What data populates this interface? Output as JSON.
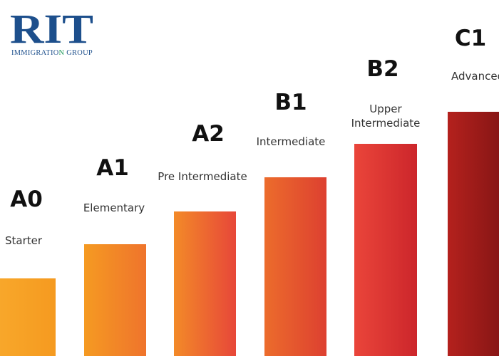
{
  "logo": {
    "mark": "RIT",
    "tagline": "IMMIGRATION GROUP"
  },
  "levels": [
    {
      "code": "A0",
      "name": [
        "Starter"
      ]
    },
    {
      "code": "A1",
      "name": [
        "Elementary"
      ]
    },
    {
      "code": "A2",
      "name": [
        "Pre Intermediate"
      ]
    },
    {
      "code": "B1",
      "name": [
        "Intermediate"
      ]
    },
    {
      "code": "B2",
      "name": [
        "Upper",
        "Intermediate"
      ]
    },
    {
      "code": "C1",
      "name": [
        "Advanced"
      ]
    }
  ]
}
